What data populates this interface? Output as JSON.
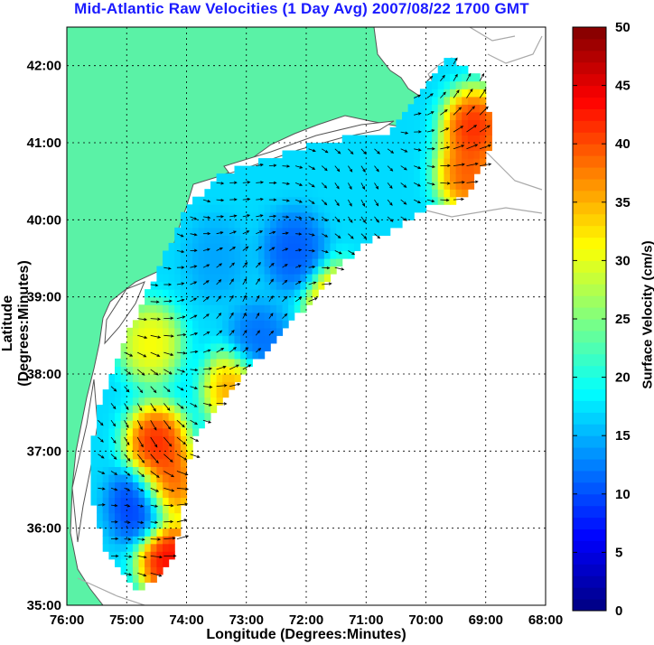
{
  "chart_data": {
    "type": "heatmap",
    "title": "Mid-Atlantic Raw Velocities (1 Day Avg) 2007/08/22 1700 GMT",
    "xlabel": "Longitude (Degrees:Minutes)",
    "ylabel": "Latitude (Degrees:Minutes)",
    "colorbar_label": "Surface Velocity (cm/s)",
    "x_ticks": [
      "76:00",
      "75:00",
      "74:00",
      "73:00",
      "72:00",
      "71:00",
      "70:00",
      "69:00",
      "68:00"
    ],
    "y_ticks": [
      "35:00",
      "36:00",
      "37:00",
      "38:00",
      "39:00",
      "40:00",
      "41:00",
      "42:00"
    ],
    "colorbar_ticks": [
      "0",
      "5",
      "10",
      "15",
      "20",
      "25",
      "30",
      "35",
      "40",
      "45",
      "50"
    ],
    "xlim": [
      -76,
      -68
    ],
    "ylim": [
      35,
      42.5
    ],
    "clim": [
      0,
      50
    ],
    "grid": true,
    "colormap": "jet",
    "colors": {
      "title": "#1a1aff",
      "land": "#5af2a6",
      "coastline": "#a9a9a9"
    },
    "regions": [
      {
        "name": "",
        "lon": -74.6,
        "lat": 38.4,
        "speed": 33
      },
      {
        "name": "",
        "lon": -74.5,
        "lat": 37.1,
        "speed": 45
      },
      {
        "name": "",
        "lon": -74.3,
        "lat": 36.6,
        "speed": 42
      },
      {
        "name": "",
        "lon": -74.3,
        "lat": 35.6,
        "speed": 47
      },
      {
        "name": "",
        "lon": -69.3,
        "lat": 40.6,
        "speed": 42
      },
      {
        "name": "",
        "lon": -69.2,
        "lat": 41.2,
        "speed": 45
      },
      {
        "name": "",
        "lon": -72.2,
        "lat": 39.6,
        "speed": 10
      },
      {
        "name": "",
        "lon": -72.8,
        "lat": 38.4,
        "speed": 11
      },
      {
        "name": "",
        "lon": -74.8,
        "lat": 36.3,
        "speed": 8
      },
      {
        "name": "",
        "lon": -73.5,
        "lat": 39.5,
        "speed": 14
      },
      {
        "name": "",
        "lon": -71.5,
        "lat": 38.9,
        "speed": 38
      },
      {
        "name": "",
        "lon": -73.2,
        "lat": 37.8,
        "speed": 38
      }
    ]
  }
}
